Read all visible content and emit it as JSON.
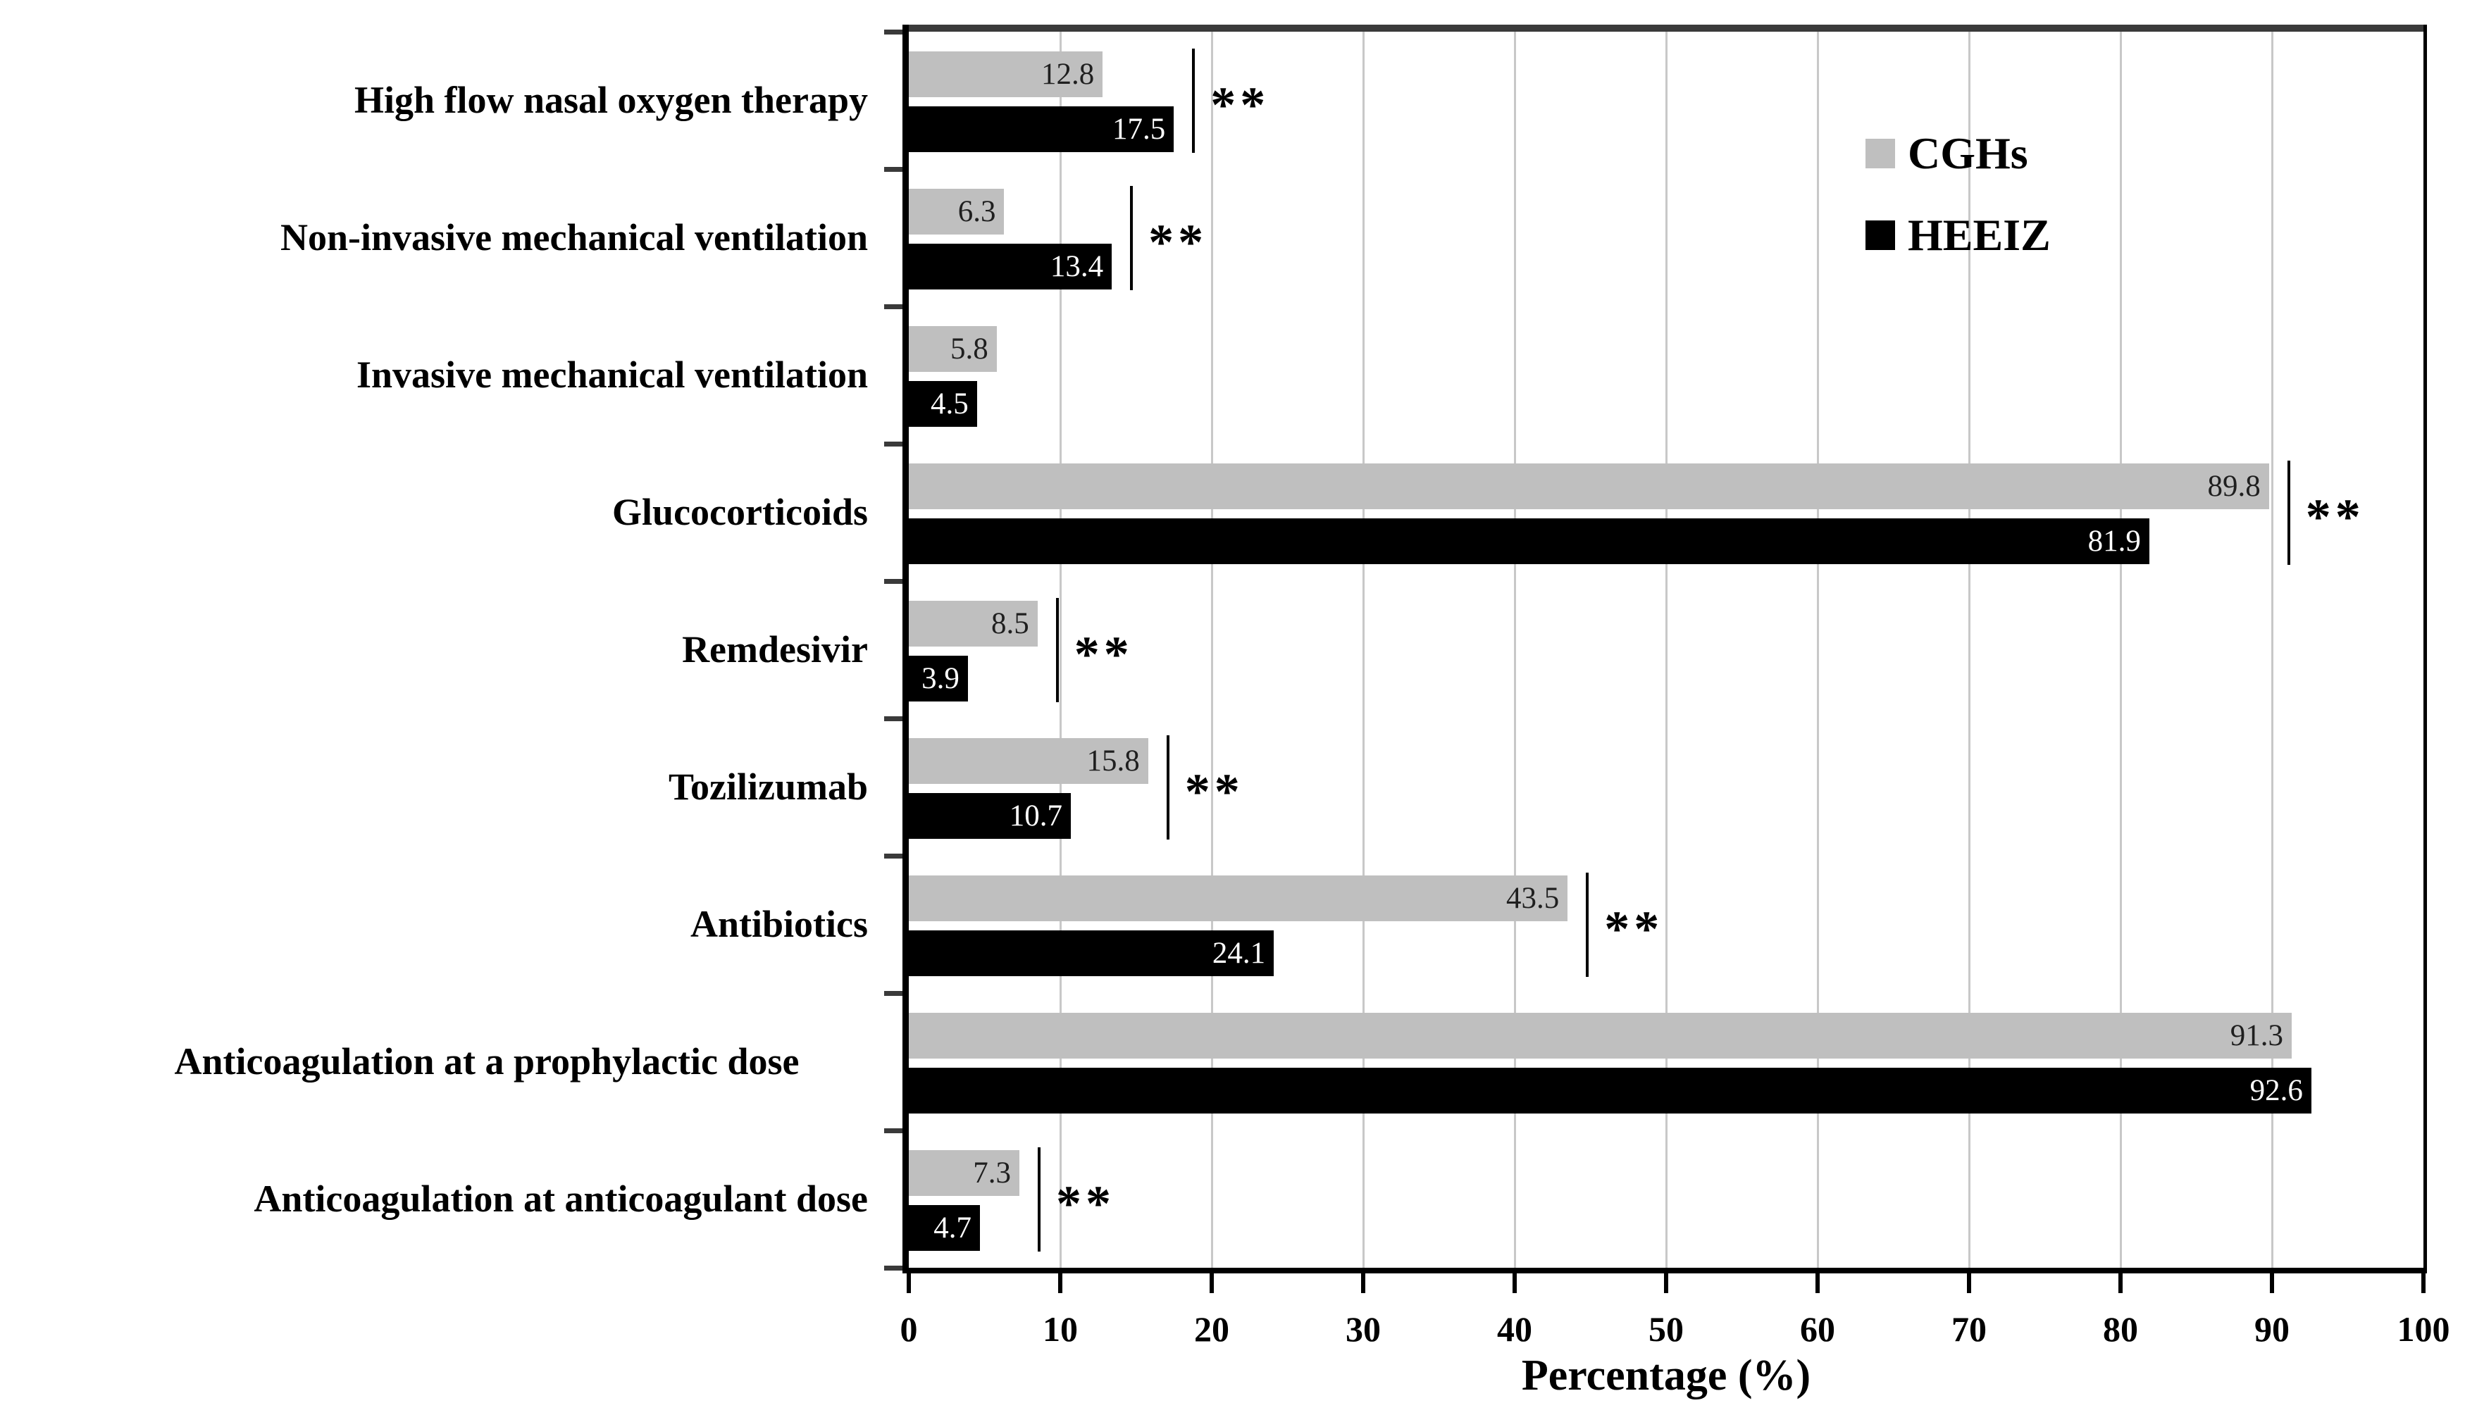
{
  "chart_data": {
    "type": "bar",
    "orientation": "horizontal",
    "xlabel": "Percentage (%)",
    "xlim": [
      0,
      100
    ],
    "xticks": [
      0,
      10,
      20,
      30,
      40,
      50,
      60,
      70,
      80,
      90,
      100
    ],
    "grid": "vertical-light-gray",
    "legend_position": "upper-right-inside",
    "legend": [
      {
        "name": "CGHs",
        "color": "#bfbfbf"
      },
      {
        "name": "HEEIZ",
        "color": "#000000"
      }
    ],
    "categories": [
      "High flow nasal oxygen therapy",
      "Non-invasive mechanical ventilation",
      "Invasive mechanical ventilation",
      "Glucocorticoids",
      "Remdesivir",
      "Tozilizumab",
      "Antibiotics",
      "Anticoagulation at a prophylactic\ndose",
      "Anticoagulation at anticoagulant dose"
    ],
    "series": [
      {
        "name": "CGHs",
        "color": "#bfbfbf",
        "values": [
          12.8,
          6.3,
          5.8,
          89.8,
          8.5,
          15.8,
          43.5,
          91.3,
          7.3
        ]
      },
      {
        "name": "HEEIZ",
        "color": "#000000",
        "values": [
          17.5,
          13.4,
          4.5,
          81.9,
          3.9,
          10.7,
          24.1,
          92.6,
          4.7
        ]
      }
    ],
    "significance": [
      "**",
      "**",
      "",
      "**",
      "**",
      "**",
      "**",
      "",
      "**"
    ],
    "significance_marker": "**"
  }
}
